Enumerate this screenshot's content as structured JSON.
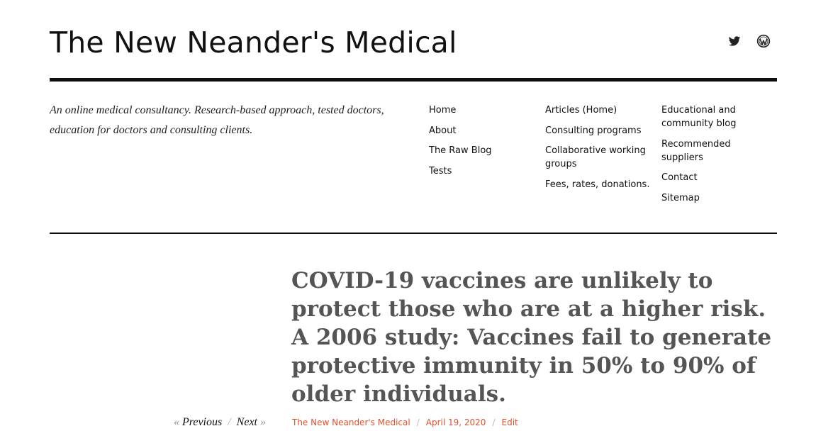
{
  "site": {
    "title": "The New Neander's Medical",
    "tagline": "An online medical consultancy. Research-based approach, tested doctors, education for doctors and consulting clients."
  },
  "social": [
    {
      "icon": "twitter-icon"
    },
    {
      "icon": "wordpress-icon"
    }
  ],
  "nav": {
    "col1": [
      "Home",
      "About",
      "The Raw Blog",
      "Tests"
    ],
    "col2": [
      "Articles (Home)",
      "Consulting programs",
      "Collaborative working groups",
      "Fees, rates, donations."
    ],
    "col3": [
      "Educational and community blog",
      "Recommended suppliers",
      "Contact",
      "Sitemap"
    ]
  },
  "post": {
    "title": "COVID-19 vaccines are unlikely to protect those who are at a higher risk. A 2006 study: Vaccines fail to generate protective immunity in 50% to 90% of older individuals.",
    "author": "The New Neander's Medical",
    "date": "April 19, 2020",
    "edit_label": "Edit"
  },
  "post_nav": {
    "prev_arrow": "«",
    "prev_label": "Previous",
    "separator": "/",
    "next_label": "Next",
    "next_arrow": "»"
  },
  "colors": {
    "accent": "#e4502b",
    "title_gray": "#555555",
    "text": "#111111"
  }
}
